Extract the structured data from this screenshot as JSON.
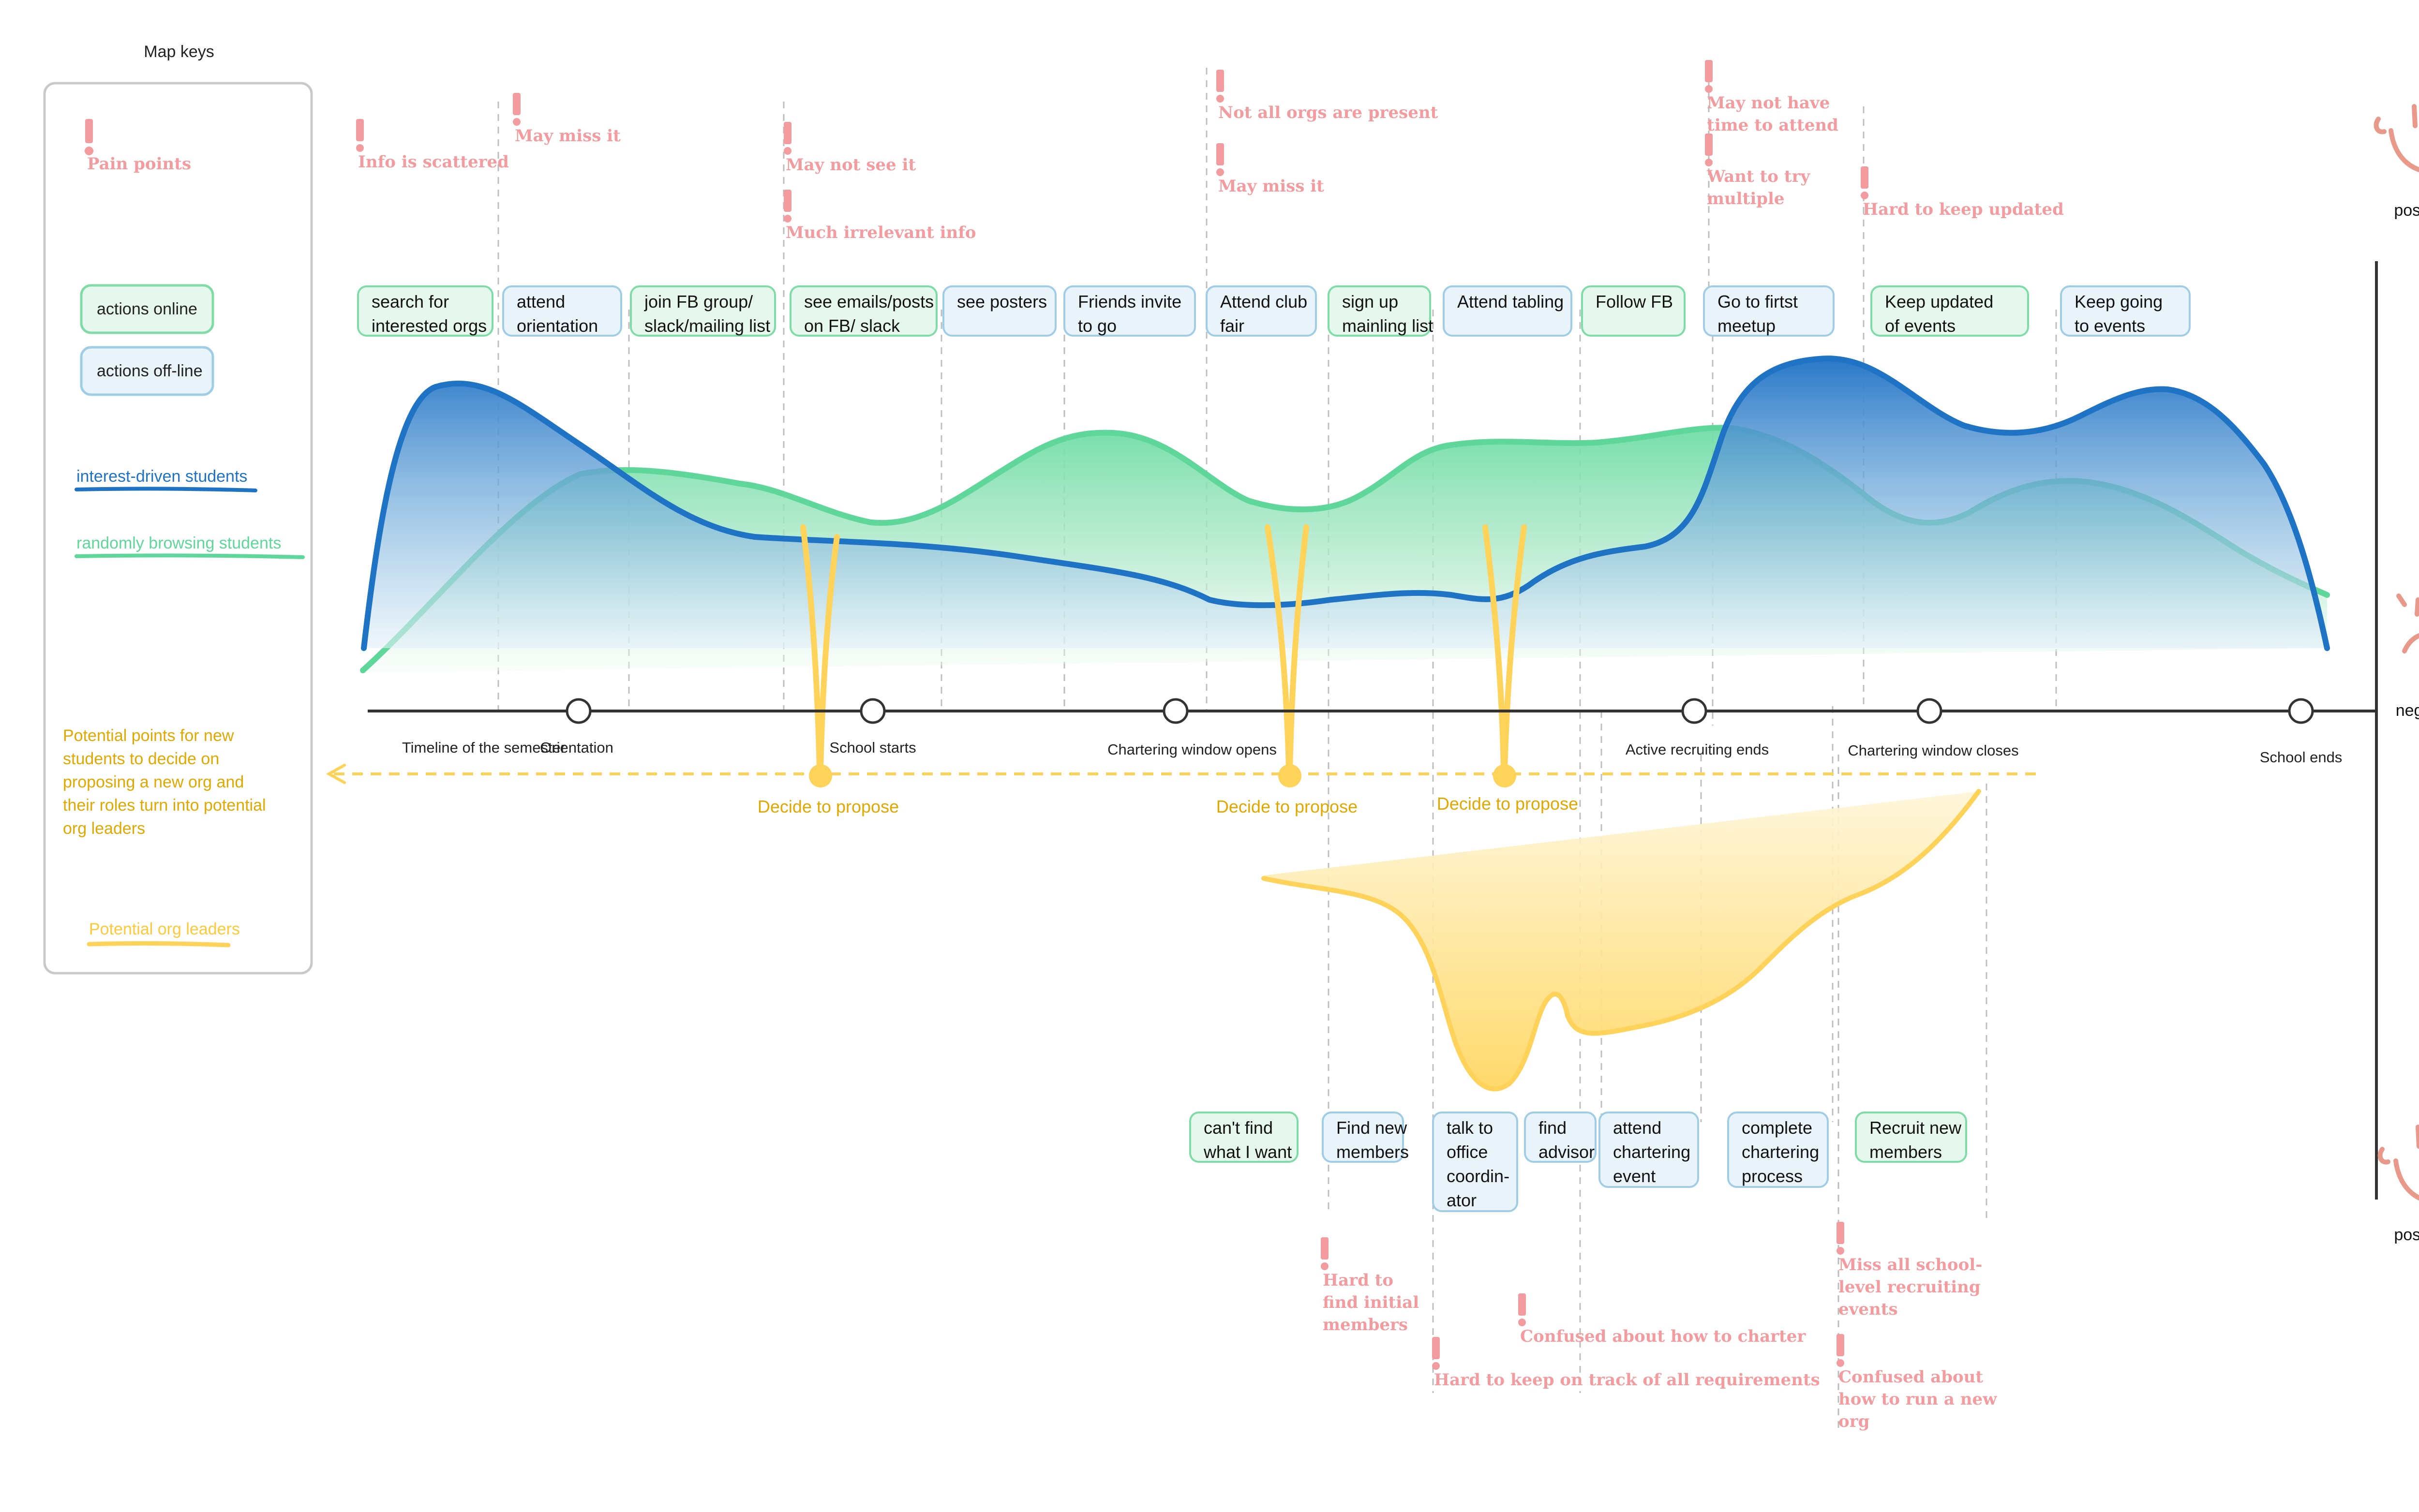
{
  "legend": {
    "title": "Map keys",
    "pain_points": "Pain points",
    "actions_online": "actions online",
    "actions_offline": "actions off-line",
    "interest_driven": "interest-driven students",
    "randomly_browsing": "randomly browsing students",
    "potential_points_note": [
      "Potential points for new",
      "students to decide on",
      "proposing a new org and",
      "their roles turn into potential",
      "org leaders"
    ],
    "potential_leaders": "Potential org leaders"
  },
  "colors": {
    "online_fill": "#e6f8ee",
    "online_stroke": "#7fdca7",
    "offline_fill": "#e8f3fa",
    "offline_stroke": "#9fcde6",
    "interest_blue": "#1f73c4",
    "browsing_green": "#5fd79a",
    "leader_yellow": "#ffd25a",
    "pain_pink": "#f29ca0",
    "axis": "#333333"
  },
  "timeline": {
    "labels": [
      "Timeline of the semester",
      "Orientation",
      "School starts",
      "Chartering window opens",
      "Active recruiting ends",
      "Chartering window closes",
      "School ends"
    ],
    "decide": [
      "Decide to propose",
      "Decide to propose",
      "Decide to propose"
    ]
  },
  "actions_top": [
    {
      "lines": [
        "search for",
        "interested orgs"
      ],
      "kind": "online"
    },
    {
      "lines": [
        "attend",
        "orientation"
      ],
      "kind": "offline"
    },
    {
      "lines": [
        "join FB group/",
        "slack/mailing list"
      ],
      "kind": "online"
    },
    {
      "lines": [
        "see emails/posts",
        "on FB/ slack"
      ],
      "kind": "online"
    },
    {
      "lines": [
        "see posters"
      ],
      "kind": "offline"
    },
    {
      "lines": [
        "Friends invite",
        "to go"
      ],
      "kind": "offline"
    },
    {
      "lines": [
        "Attend club",
        "fair"
      ],
      "kind": "offline"
    },
    {
      "lines": [
        "sign up",
        "mainling list"
      ],
      "kind": "online"
    },
    {
      "lines": [
        "Attend tabling"
      ],
      "kind": "offline"
    },
    {
      "lines": [
        "Follow FB"
      ],
      "kind": "online"
    },
    {
      "lines": [
        "Go to firtst",
        "meetup"
      ],
      "kind": "offline"
    },
    {
      "lines": [
        "Keep updated",
        "of events"
      ],
      "kind": "online"
    },
    {
      "lines": [
        "Keep going",
        "to events"
      ],
      "kind": "offline"
    }
  ],
  "actions_bottom": [
    {
      "lines": [
        "can't find",
        "what I want"
      ],
      "kind": "online"
    },
    {
      "lines": [
        "Find new",
        "members"
      ],
      "kind": "offline"
    },
    {
      "lines": [
        "talk to",
        "office",
        "coordin-",
        "ator"
      ],
      "kind": "offline"
    },
    {
      "lines": [
        "find",
        "advisor"
      ],
      "kind": "offline"
    },
    {
      "lines": [
        "attend",
        "chartering",
        "event"
      ],
      "kind": "offline"
    },
    {
      "lines": [
        "complete",
        "chartering",
        "process"
      ],
      "kind": "offline"
    },
    {
      "lines": [
        "Recruit new",
        "members"
      ],
      "kind": "online"
    }
  ],
  "pain_points_top": [
    {
      "lines": [
        "Info is scattered"
      ]
    },
    {
      "lines": [
        "May miss it"
      ]
    },
    {
      "lines": [
        "May not see it"
      ]
    },
    {
      "lines": [
        "Much irrelevant info"
      ]
    },
    {
      "lines": [
        "Not all orgs are present"
      ]
    },
    {
      "lines": [
        "May miss it"
      ]
    },
    {
      "lines": [
        "May not have",
        "time to attend"
      ]
    },
    {
      "lines": [
        "Want to try",
        "multiple"
      ]
    },
    {
      "lines": [
        "Hard to keep updated"
      ]
    }
  ],
  "pain_points_bottom": [
    {
      "lines": [
        "Hard to",
        "find initial",
        "members"
      ]
    },
    {
      "lines": [
        "Confused about how to charter"
      ]
    },
    {
      "lines": [
        "Hard to keep on track of all requirements"
      ]
    },
    {
      "lines": [
        "Miss all school-",
        "level recruiting",
        "events"
      ]
    },
    {
      "lines": [
        "Confused about",
        "how to run a new",
        "org"
      ]
    }
  ],
  "emotion_scale": {
    "top": "positive",
    "middle": "negative",
    "bottom": "positive"
  }
}
